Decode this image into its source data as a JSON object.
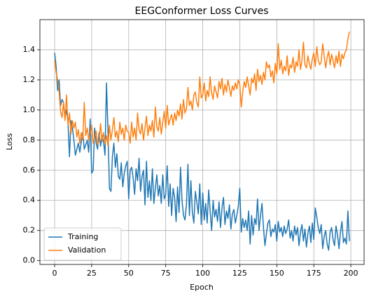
{
  "chart_data": {
    "type": "line",
    "title": "EEGConformer Loss Curves",
    "x_label": "Epoch",
    "y_label": "Loss",
    "x": [
      0,
      1,
      2,
      3,
      4,
      5,
      6,
      7,
      8,
      9,
      10,
      11,
      12,
      13,
      14,
      15,
      16,
      17,
      18,
      19,
      20,
      21,
      22,
      23,
      24,
      25,
      26,
      27,
      28,
      29,
      30,
      31,
      32,
      33,
      34,
      35,
      36,
      37,
      38,
      39,
      40,
      41,
      42,
      43,
      44,
      45,
      46,
      47,
      48,
      49,
      50,
      51,
      52,
      53,
      54,
      55,
      56,
      57,
      58,
      59,
      60,
      61,
      62,
      63,
      64,
      65,
      66,
      67,
      68,
      69,
      70,
      71,
      72,
      73,
      74,
      75,
      76,
      77,
      78,
      79,
      80,
      81,
      82,
      83,
      84,
      85,
      86,
      87,
      88,
      89,
      90,
      91,
      92,
      93,
      94,
      95,
      96,
      97,
      98,
      99,
      100,
      101,
      102,
      103,
      104,
      105,
      106,
      107,
      108,
      109,
      110,
      111,
      112,
      113,
      114,
      115,
      116,
      117,
      118,
      119,
      120,
      121,
      122,
      123,
      124,
      125,
      126,
      127,
      128,
      129,
      130,
      131,
      132,
      133,
      134,
      135,
      136,
      137,
      138,
      139,
      140,
      141,
      142,
      143,
      144,
      145,
      146,
      147,
      148,
      149,
      150,
      151,
      152,
      153,
      154,
      155,
      156,
      157,
      158,
      159,
      160,
      161,
      162,
      163,
      164,
      165,
      166,
      167,
      168,
      169,
      170,
      171,
      172,
      173,
      174,
      175,
      176,
      177,
      178,
      179,
      180,
      181,
      182,
      183,
      184,
      185,
      186,
      187,
      188,
      189,
      190,
      191,
      192,
      193,
      194,
      195,
      196,
      197,
      198,
      199
    ],
    "series": [
      {
        "name": "Training",
        "color": "#1f77b4",
        "values": [
          1.38,
          1.29,
          1.13,
          1.2,
          1.03,
          1.07,
          1.05,
          0.95,
          1.0,
          0.92,
          0.69,
          0.93,
          0.88,
          0.8,
          0.7,
          0.74,
          0.78,
          0.72,
          0.79,
          0.85,
          0.74,
          0.77,
          0.8,
          0.72,
          0.94,
          0.58,
          0.6,
          0.88,
          0.78,
          0.74,
          0.85,
          0.76,
          0.83,
          0.79,
          0.7,
          1.18,
          0.87,
          0.48,
          0.46,
          0.69,
          0.78,
          0.62,
          0.71,
          0.56,
          0.54,
          0.65,
          0.49,
          0.58,
          0.63,
          0.66,
          0.41,
          0.6,
          0.62,
          0.55,
          0.44,
          0.61,
          0.53,
          0.68,
          0.46,
          0.56,
          0.6,
          0.37,
          0.66,
          0.42,
          0.53,
          0.4,
          0.61,
          0.38,
          0.48,
          0.57,
          0.43,
          0.5,
          0.38,
          0.57,
          0.41,
          0.44,
          0.63,
          0.36,
          0.51,
          0.3,
          0.48,
          0.42,
          0.26,
          0.49,
          0.32,
          0.62,
          0.4,
          0.3,
          0.27,
          0.37,
          0.64,
          0.3,
          0.53,
          0.32,
          0.25,
          0.46,
          0.39,
          0.31,
          0.51,
          0.24,
          0.45,
          0.27,
          0.38,
          0.25,
          0.47,
          0.33,
          0.2,
          0.4,
          0.29,
          0.34,
          0.26,
          0.39,
          0.22,
          0.35,
          0.42,
          0.24,
          0.33,
          0.28,
          0.37,
          0.21,
          0.31,
          0.34,
          0.25,
          0.3,
          0.36,
          0.48,
          0.19,
          0.28,
          0.22,
          0.27,
          0.2,
          0.33,
          0.11,
          0.3,
          0.17,
          0.28,
          0.24,
          0.41,
          0.2,
          0.3,
          0.38,
          0.22,
          0.1,
          0.18,
          0.25,
          0.27,
          0.16,
          0.21,
          0.19,
          0.24,
          0.13,
          0.26,
          0.19,
          0.22,
          0.16,
          0.23,
          0.18,
          0.21,
          0.27,
          0.15,
          0.2,
          0.13,
          0.23,
          0.17,
          0.22,
          0.1,
          0.19,
          0.24,
          0.13,
          0.21,
          0.09,
          0.18,
          0.23,
          0.12,
          0.25,
          0.14,
          0.35,
          0.29,
          0.22,
          0.18,
          0.24,
          0.08,
          0.16,
          0.2,
          0.11,
          0.07,
          0.19,
          0.22,
          0.14,
          0.1,
          0.23,
          0.17,
          0.08,
          0.19,
          0.26,
          0.12,
          0.15,
          0.11,
          0.33,
          0.13
        ]
      },
      {
        "name": "Validation",
        "color": "#ff7f0e",
        "values": [
          1.33,
          1.25,
          1.2,
          1.12,
          0.99,
          0.95,
          1.05,
          0.93,
          1.1,
          0.9,
          0.98,
          0.84,
          0.93,
          0.88,
          0.92,
          0.82,
          0.87,
          0.78,
          0.85,
          0.8,
          1.05,
          0.83,
          0.88,
          0.8,
          0.84,
          0.9,
          0.78,
          0.82,
          0.86,
          0.77,
          0.8,
          0.91,
          0.79,
          0.85,
          0.78,
          0.83,
          0.76,
          0.9,
          0.8,
          0.87,
          0.95,
          0.82,
          0.86,
          0.79,
          0.92,
          0.84,
          0.88,
          0.8,
          0.9,
          0.86,
          0.85,
          0.78,
          0.92,
          0.82,
          0.88,
          0.8,
          0.98,
          0.87,
          0.84,
          0.91,
          0.8,
          0.88,
          0.96,
          0.83,
          0.9,
          0.86,
          0.93,
          0.82,
          1.02,
          0.89,
          0.86,
          0.95,
          0.84,
          0.92,
          0.99,
          0.88,
          1.03,
          0.9,
          0.94,
          0.97,
          0.9,
          0.98,
          0.93,
          1.0,
          0.96,
          1.04,
          0.94,
          1.07,
          0.98,
          1.01,
          1.15,
          1.03,
          1.06,
          1.0,
          1.1,
          1.12,
          1.05,
          1.02,
          1.22,
          1.08,
          1.1,
          1.18,
          1.06,
          1.13,
          1.09,
          1.22,
          1.11,
          1.07,
          1.16,
          1.12,
          1.08,
          1.19,
          1.14,
          1.21,
          1.1,
          1.17,
          1.12,
          1.2,
          1.15,
          1.09,
          1.16,
          1.13,
          1.18,
          1.14,
          1.2,
          1.17,
          1.02,
          1.12,
          1.19,
          1.15,
          1.22,
          1.16,
          1.1,
          1.21,
          1.18,
          1.24,
          1.13,
          1.27,
          1.19,
          1.23,
          1.17,
          1.25,
          1.2,
          1.32,
          1.28,
          1.3,
          1.22,
          1.26,
          1.18,
          1.31,
          1.24,
          1.44,
          1.27,
          1.33,
          1.24,
          1.29,
          1.26,
          1.36,
          1.23,
          1.3,
          1.28,
          1.35,
          1.25,
          1.32,
          1.29,
          1.4,
          1.27,
          1.33,
          1.45,
          1.3,
          1.28,
          1.36,
          1.31,
          1.27,
          1.34,
          1.38,
          1.29,
          1.42,
          1.33,
          1.3,
          1.32,
          1.44,
          1.36,
          1.28,
          1.35,
          1.39,
          1.3,
          1.37,
          1.33,
          1.28,
          1.36,
          1.31,
          1.39,
          1.29,
          1.37,
          1.34,
          1.38,
          1.4,
          1.47,
          1.52
        ]
      }
    ],
    "xlim": [
      -9.95,
      208.95
    ],
    "ylim": [
      -0.025,
      1.6
    ],
    "xticks": [
      0,
      25,
      50,
      75,
      100,
      125,
      150,
      175,
      200
    ],
    "yticks": [
      {
        "value": 0,
        "label": "0.0"
      },
      {
        "value": 0.2,
        "label": "0.2"
      },
      {
        "value": 0.4,
        "label": "0.4"
      },
      {
        "value": 0.6,
        "label": "0.6"
      },
      {
        "value": 0.8,
        "label": "0.8"
      },
      {
        "value": 1.0,
        "label": "1.0"
      },
      {
        "value": 1.2,
        "label": "1.2"
      },
      {
        "value": 1.4,
        "label": "1.4"
      }
    ],
    "grid": true,
    "legend": "lower left"
  }
}
